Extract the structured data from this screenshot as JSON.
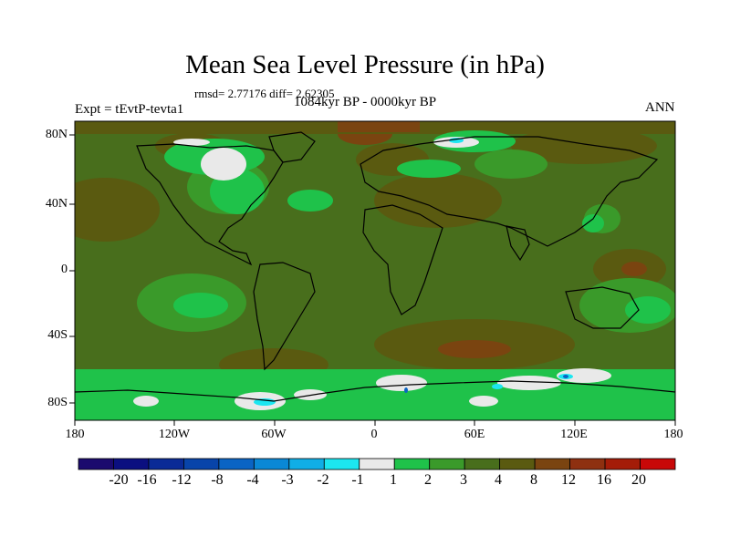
{
  "header": {
    "title": "Mean Sea Level Pressure (in hPa)",
    "stats": "rmsd= 2.77176 diff= 2.62305",
    "experiment": "Expt = tEvtP-tevta1",
    "period": "1084kyr BP - 0000kyr BP",
    "season": "ANN"
  },
  "axes": {
    "y_labels": [
      "80N",
      "40N",
      "0",
      "40S",
      "80S"
    ],
    "x_labels": [
      "180",
      "120W",
      "60W",
      "0",
      "60E",
      "120E",
      "180"
    ]
  },
  "colorbar": {
    "labels": [
      "-20",
      "-16",
      "-12",
      "-8",
      "-4",
      "-3",
      "-2",
      "-1",
      "1",
      "2",
      "3",
      "4",
      "8",
      "12",
      "16",
      "20"
    ],
    "colors": [
      "#1b0a6e",
      "#0b0f80",
      "#0a2a96",
      "#0844aa",
      "#0a64c4",
      "#0a88d6",
      "#10aee6",
      "#1ce6f0",
      "#e9e9e9",
      "#1fc24a",
      "#3a9a2a",
      "#486e1c",
      "#5a5a10",
      "#7a4410",
      "#8e3010",
      "#a41c08",
      "#c80808"
    ]
  },
  "map": {
    "dominant_color": "#486e1c",
    "land_outline_color": "#000000"
  }
}
